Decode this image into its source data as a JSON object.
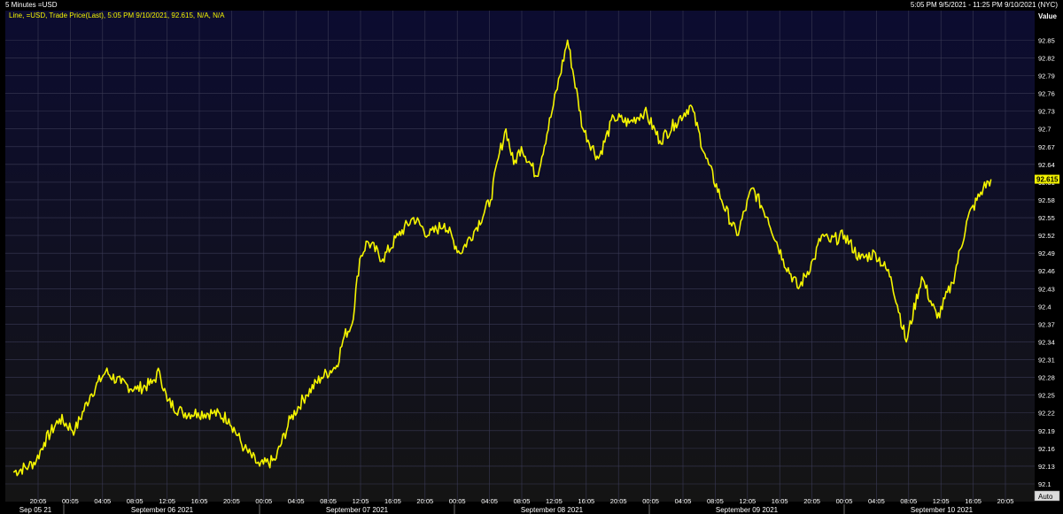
{
  "header": {
    "title": "5 Minutes =USD",
    "range": "5:05 PM 9/5/2021 - 11:25 PM 9/10/2021 (NYC)"
  },
  "legend": {
    "text": "Line, =USD, Trade Price(Last), 5:05 PM 9/10/2021, 92.615, N/A, N/A"
  },
  "axis": {
    "value_title": "Value",
    "auto_button": "Auto",
    "current_value_label": "92.615"
  },
  "colors": {
    "background_top": "#0c0c30",
    "background_bottom": "#141414",
    "line": "#f5f500",
    "grid": "#3a3a55",
    "text": "#ffffff",
    "current_value_bg": "#f5f500"
  },
  "chart_data": {
    "type": "line",
    "title": "5 Minutes =USD",
    "ylim": [
      92.1,
      92.87
    ],
    "grid": true,
    "y_ticks": [
      "92.1",
      "92.13",
      "92.16",
      "92.19",
      "92.22",
      "92.25",
      "92.28",
      "92.31",
      "92.34",
      "92.37",
      "92.4",
      "92.43",
      "92.46",
      "92.49",
      "92.52",
      "92.55",
      "92.58",
      "92.61",
      "92.64",
      "92.67",
      "92.7",
      "92.73",
      "92.76",
      "92.79",
      "92.82",
      "92.85"
    ],
    "x_tick_labels": [
      "20:05",
      "00:05",
      "04:05",
      "08:05",
      "12:05",
      "16:05",
      "20:05",
      "00:05",
      "04:05",
      "08:05",
      "12:05",
      "16:05",
      "20:05",
      "00:05",
      "04:05",
      "08:05",
      "12:05",
      "16:05",
      "20:05",
      "00:05",
      "04:05",
      "08:05",
      "12:05",
      "16:05",
      "20:05",
      "00:05",
      "04:05",
      "08:05",
      "12:05",
      "16:05",
      "20:05"
    ],
    "date_labels": [
      "Sep 05 21",
      "September 06 2021",
      "September 07 2021",
      "September 08 2021",
      "September 09 2021",
      "September 10 2021"
    ],
    "series": [
      {
        "time_hours": [
          0,
          2,
          3,
          4,
          6,
          8,
          10,
          12,
          14,
          16,
          18,
          19,
          20,
          22,
          24,
          26,
          28,
          30,
          32,
          34,
          36,
          38,
          40,
          42,
          43,
          44,
          45,
          46,
          48,
          50,
          52,
          54,
          56,
          58,
          60,
          62,
          63,
          64,
          65,
          66,
          68,
          70,
          72,
          74,
          76,
          78,
          80,
          82,
          84,
          86,
          88,
          90,
          92,
          94,
          96,
          98,
          100,
          102,
          104,
          105,
          106,
          108,
          110,
          112,
          114,
          116,
          118,
          120,
          122,
          124,
          126,
          127
        ],
        "values": [
          92.12,
          92.13,
          92.14,
          92.17,
          92.21,
          92.19,
          92.25,
          92.29,
          92.27,
          92.26,
          92.27,
          92.29,
          92.24,
          92.22,
          92.22,
          92.22,
          92.21,
          92.16,
          92.13,
          92.14,
          92.21,
          92.25,
          92.28,
          92.3,
          92.35,
          92.37,
          92.48,
          92.51,
          92.48,
          92.52,
          92.55,
          92.52,
          92.54,
          92.49,
          92.53,
          92.58,
          92.65,
          92.7,
          92.64,
          92.67,
          92.62,
          92.73,
          92.85,
          92.7,
          92.65,
          92.72,
          92.71,
          92.73,
          92.68,
          92.71,
          92.74,
          92.65,
          92.58,
          92.52,
          92.6,
          92.55,
          92.48,
          92.43,
          92.48,
          92.52,
          92.51,
          92.52,
          92.48,
          92.49,
          92.45,
          92.34,
          92.45,
          92.38,
          92.44,
          92.55,
          92.6,
          92.615
        ]
      }
    ]
  }
}
